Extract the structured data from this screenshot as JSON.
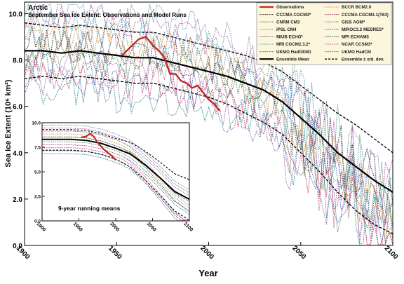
{
  "chart_data": [
    {
      "type": "line",
      "title": "Arctic",
      "subtitle": "September Sea Ice Extent: Observations and Model Runs",
      "xlabel": "Year",
      "ylabel": "Sea Ice Extent (10⁶ km²)",
      "xlim": [
        1900,
        2100
      ],
      "ylim": [
        0,
        10.5
      ],
      "x_ticks": [
        "1900",
        "1950",
        "2000",
        "2050",
        "2100"
      ],
      "y_ticks": [
        "0.0",
        "2.0",
        "4.0",
        "6.0",
        "8.0",
        "10.0"
      ],
      "grid": false,
      "legend_position": "top-right",
      "legend": [
        {
          "name": "Observations",
          "color": "#c1272d",
          "style": "solid-thick"
        },
        {
          "name": "CCCMA CGCM3*",
          "color": "#222222",
          "style": "dotted"
        },
        {
          "name": "CNRM CM3",
          "color": "#3a6fb0",
          "style": "dotted"
        },
        {
          "name": "IPSL CM4",
          "color": "#4aa3d6",
          "style": "dotted"
        },
        {
          "name": "MIUB ECHO*",
          "color": "#7d5fa6",
          "style": "dotted"
        },
        {
          "name": "MRI CGCM2.3.2*",
          "color": "#4f9a94",
          "style": "dotted"
        },
        {
          "name": "UKMO HadGEM1",
          "color": "#3d8c3d",
          "style": "dotted"
        },
        {
          "name": "Ensemble Mean",
          "color": "#000000",
          "style": "solid-thick"
        },
        {
          "name": "BCCR BCM2.0",
          "color": "#e08a2a",
          "style": "dotted"
        },
        {
          "name": "CCCMA CGCM3.1(T63)",
          "color": "#b03a5a",
          "style": "dotted"
        },
        {
          "name": "GISS AOM*",
          "color": "#b54aa6",
          "style": "dotted"
        },
        {
          "name": "MIROC3.2 MEDRES*",
          "color": "#2a7a8c",
          "style": "dotted"
        },
        {
          "name": "MPI ECHAM5",
          "color": "#555555",
          "style": "dotted"
        },
        {
          "name": "NCAR CCSM3*",
          "color": "#c7578a",
          "style": "dotted"
        },
        {
          "name": "UKMO HadCM",
          "color": "#777777",
          "style": "dotted"
        },
        {
          "name": "Ensemble ± std. dev.",
          "color": "#000000",
          "style": "dashed"
        }
      ],
      "series": [
        {
          "name": "Observations",
          "x": [
            1953,
            1958,
            1962,
            1966,
            1970,
            1973,
            1976,
            1979,
            1982,
            1985,
            1988,
            1991,
            1994,
            1997,
            2000,
            2003,
            2006
          ],
          "y": [
            8.2,
            8.6,
            8.9,
            9.0,
            8.6,
            8.4,
            8.1,
            7.4,
            7.4,
            7.1,
            7.0,
            6.8,
            6.9,
            6.6,
            6.3,
            6.1,
            5.8
          ]
        },
        {
          "name": "Ensemble Mean",
          "x": [
            1900,
            1910,
            1920,
            1930,
            1940,
            1950,
            1960,
            1970,
            1980,
            1990,
            2000,
            2010,
            2020,
            2030,
            2040,
            2050,
            2060,
            2070,
            2080,
            2090,
            2100
          ],
          "y": [
            8.4,
            8.4,
            8.3,
            8.4,
            8.3,
            8.2,
            8.1,
            8.1,
            7.9,
            7.7,
            7.5,
            7.3,
            7.0,
            6.7,
            6.2,
            5.5,
            4.8,
            4.0,
            3.4,
            2.8,
            2.3
          ]
        },
        {
          "name": "Ensemble ± std. dev. (upper)",
          "x": [
            1900,
            1910,
            1920,
            1930,
            1940,
            1950,
            1960,
            1970,
            1980,
            1990,
            2000,
            2010,
            2020,
            2030,
            2040,
            2050,
            2060,
            2070,
            2080,
            2090,
            2100
          ],
          "y": [
            9.6,
            9.5,
            9.4,
            9.5,
            9.4,
            9.3,
            9.2,
            9.2,
            9.0,
            8.8,
            8.6,
            8.4,
            8.2,
            7.9,
            7.5,
            6.9,
            6.3,
            5.7,
            5.2,
            4.6,
            4.0
          ]
        },
        {
          "name": "Ensemble ± std. dev. (lower)",
          "x": [
            1900,
            1910,
            1920,
            1930,
            1940,
            1950,
            1960,
            1970,
            1980,
            1990,
            2000,
            2010,
            2020,
            2030,
            2040,
            2050,
            2060,
            2070,
            2080,
            2090,
            2100
          ],
          "y": [
            7.2,
            7.3,
            7.2,
            7.3,
            7.2,
            7.1,
            7.0,
            7.0,
            6.8,
            6.6,
            6.4,
            6.1,
            5.7,
            5.3,
            4.8,
            4.0,
            3.2,
            2.3,
            1.5,
            0.9,
            0.5
          ]
        }
      ]
    },
    {
      "type": "line",
      "annotation": "9-year running means",
      "xlim": [
        1900,
        2100
      ],
      "ylim": [
        0,
        10
      ],
      "x_ticks": [
        "1900",
        "1950",
        "2000",
        "2050",
        "2100"
      ],
      "y_ticks": [
        "0.0",
        "2.5",
        "5.0",
        "7.5",
        "10.0"
      ],
      "series": [
        {
          "name": "Observations",
          "x": [
            1953,
            1960,
            1965,
            1970,
            1975,
            1980,
            1985,
            1990,
            1995,
            2000
          ],
          "y": [
            8.5,
            8.6,
            8.9,
            8.6,
            8.0,
            7.6,
            7.2,
            6.9,
            6.6,
            6.2
          ]
        },
        {
          "name": "Ensemble Mean",
          "x": [
            1900,
            1920,
            1940,
            1960,
            1980,
            2000,
            2020,
            2040,
            2060,
            2080,
            2100
          ],
          "y": [
            8.3,
            8.3,
            8.3,
            8.2,
            7.9,
            7.4,
            6.8,
            5.7,
            4.4,
            3.0,
            2.2
          ]
        }
      ]
    }
  ]
}
